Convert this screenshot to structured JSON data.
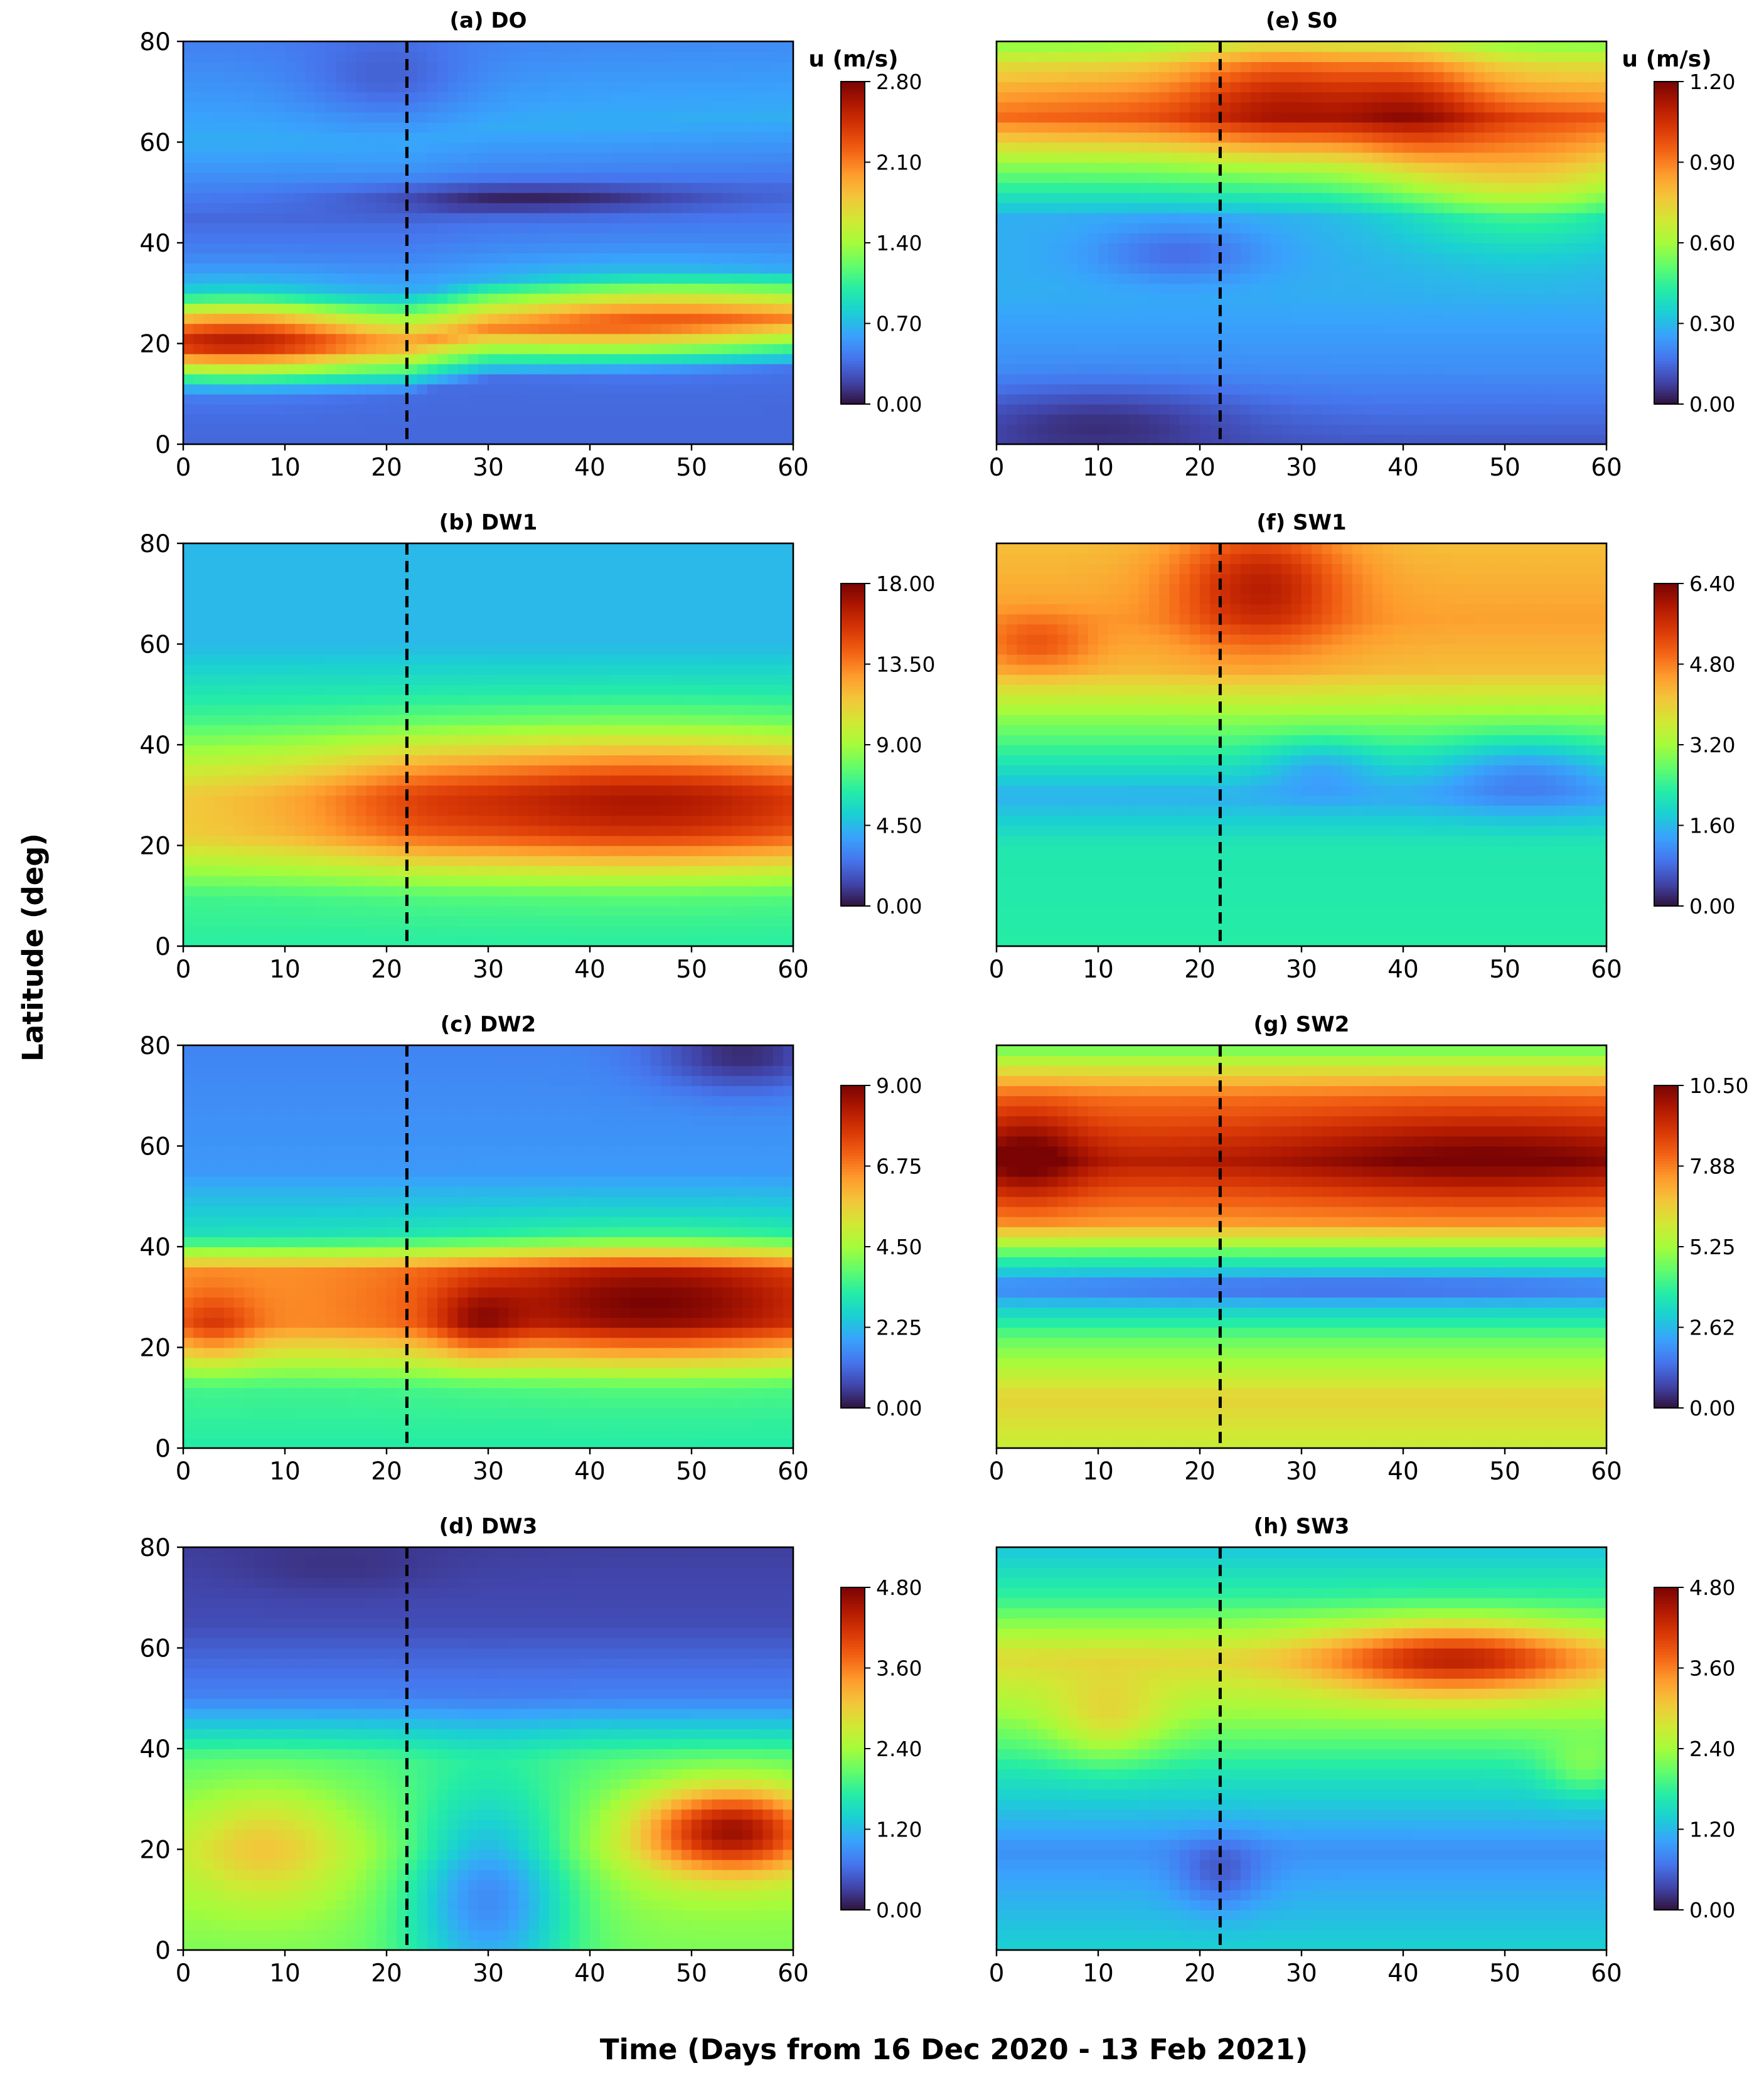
{
  "figure": {
    "xlabel": "Time (Days from 16 Dec 2020 - 13 Feb 2021)",
    "ylabel": "Latitude (deg)",
    "colorbar_unit": "u (m/s)",
    "colormap": [
      "#30123b",
      "#4145ab",
      "#4675ed",
      "#39a2fc",
      "#1bcfd4",
      "#24eca6",
      "#61fc6c",
      "#a4fc3b",
      "#d1e834",
      "#f3c63a",
      "#fe9b2d",
      "#f36315",
      "#d93806",
      "#b11901",
      "#7a0403"
    ]
  },
  "chart_data": [
    {
      "id": "a",
      "type": "heatmap",
      "title": "(a) DO",
      "xlim": [
        0,
        60
      ],
      "ylim": [
        0,
        80
      ],
      "xticks": [
        "0",
        "10",
        "20",
        "30",
        "40",
        "50",
        "60"
      ],
      "yticks": [
        "0",
        "20",
        "40",
        "60",
        "80"
      ],
      "event_day": 22,
      "cbar_ticks": [
        "0.00",
        "0.70",
        "1.40",
        "2.10",
        "2.80"
      ],
      "cbar_range": [
        0,
        2.8
      ],
      "base": [
        [
          0,
          0.35
        ],
        [
          10,
          0.35
        ],
        [
          20,
          1.85
        ],
        [
          30,
          0.55
        ],
        [
          45,
          0.35
        ],
        [
          60,
          0.65
        ],
        [
          80,
          0.45
        ]
      ],
      "blobs": [
        [
          5,
          22,
          9,
          6,
          0.85
        ],
        [
          45,
          26,
          12,
          6,
          0.5
        ],
        [
          33,
          49,
          12,
          2,
          -0.3
        ],
        [
          20,
          72,
          6,
          6,
          -0.2
        ]
      ],
      "shifts": [
        [
          0,
          0
        ],
        [
          22,
          0
        ],
        [
          30,
          3
        ],
        [
          60,
          5
        ]
      ]
    },
    {
      "id": "e",
      "type": "heatmap",
      "title": "(e) S0",
      "xlim": [
        0,
        60
      ],
      "ylim": [
        0,
        80
      ],
      "xticks": [
        "0",
        "10",
        "20",
        "30",
        "40",
        "50",
        "60"
      ],
      "yticks": [],
      "event_day": 22,
      "cbar_ticks": [
        "0.00",
        "0.30",
        "0.60",
        "0.90",
        "1.20"
      ],
      "cbar_range": [
        0,
        1.2
      ],
      "base": [
        [
          0,
          0.12
        ],
        [
          15,
          0.22
        ],
        [
          30,
          0.28
        ],
        [
          45,
          0.28
        ],
        [
          55,
          0.55
        ],
        [
          65,
          0.9
        ],
        [
          75,
          0.72
        ],
        [
          80,
          0.55
        ]
      ],
      "blobs": [
        [
          28,
          70,
          7,
          9,
          0.25
        ],
        [
          41,
          68,
          5,
          9,
          0.2
        ],
        [
          10,
          67,
          9,
          6,
          0.05
        ],
        [
          52,
          52,
          9,
          9,
          0.25
        ],
        [
          18,
          38,
          6,
          4,
          -0.12
        ],
        [
          10,
          5,
          10,
          5,
          -0.1
        ]
      ],
      "shifts": []
    },
    {
      "id": "b",
      "type": "heatmap",
      "title": "(b) DW1",
      "xlim": [
        0,
        60
      ],
      "ylim": [
        0,
        80
      ],
      "xticks": [
        "0",
        "10",
        "20",
        "30",
        "40",
        "50",
        "60"
      ],
      "yticks": [
        "0",
        "20",
        "40",
        "60",
        "80"
      ],
      "event_day": 22,
      "cbar_ticks": [
        "0.00",
        "4.50",
        "9.00",
        "13.50",
        "18.00"
      ],
      "cbar_range": [
        0,
        18
      ],
      "base": [
        [
          0,
          6.5
        ],
        [
          10,
          7
        ],
        [
          22,
          11
        ],
        [
          30,
          11
        ],
        [
          45,
          7
        ],
        [
          60,
          4.5
        ],
        [
          80,
          4.5
        ]
      ],
      "blobs": [
        [
          45,
          29,
          20,
          9,
          5.8
        ],
        [
          22,
          28,
          6,
          8,
          1
        ]
      ],
      "shifts": []
    },
    {
      "id": "f",
      "type": "heatmap",
      "title": "(f) SW1",
      "xlim": [
        0,
        60
      ],
      "ylim": [
        0,
        80
      ],
      "xticks": [
        "0",
        "10",
        "20",
        "30",
        "40",
        "50",
        "60"
      ],
      "yticks": [],
      "event_day": 22,
      "cbar_ticks": [
        "0.00",
        "1.60",
        "3.20",
        "4.80",
        "6.40"
      ],
      "cbar_range": [
        0,
        6.4
      ],
      "base": [
        [
          0,
          2.3
        ],
        [
          20,
          2.2
        ],
        [
          30,
          1.5
        ],
        [
          45,
          3
        ],
        [
          55,
          4.2
        ],
        [
          65,
          4.5
        ],
        [
          80,
          4.2
        ]
      ],
      "blobs": [
        [
          26,
          72,
          6,
          9,
          1.5
        ],
        [
          4,
          60,
          4,
          4,
          0.8
        ],
        [
          52,
          35,
          6,
          5,
          -0.8
        ],
        [
          32,
          36,
          4,
          4,
          -0.6
        ]
      ],
      "shifts": []
    },
    {
      "id": "c",
      "type": "heatmap",
      "title": "(c) DW2",
      "xlim": [
        0,
        60
      ],
      "ylim": [
        0,
        80
      ],
      "xticks": [
        "0",
        "10",
        "20",
        "30",
        "40",
        "50",
        "60"
      ],
      "yticks": [
        "0",
        "20",
        "40",
        "60",
        "80"
      ],
      "event_day": 22,
      "cbar_ticks": [
        "0.00",
        "2.25",
        "4.50",
        "6.75",
        "9.00"
      ],
      "cbar_range": [
        0,
        9
      ],
      "base": [
        [
          0,
          3.2
        ],
        [
          12,
          3.5
        ],
        [
          25,
          6.5
        ],
        [
          35,
          6.5
        ],
        [
          42,
          3
        ],
        [
          55,
          1.8
        ],
        [
          80,
          1.5
        ]
      ],
      "blobs": [
        [
          46,
          29,
          14,
          8,
          2.5
        ],
        [
          29,
          25,
          3,
          5,
          1.2
        ],
        [
          3,
          24,
          3,
          5,
          1.2
        ],
        [
          55,
          78,
          6,
          5,
          -1.2
        ]
      ],
      "shifts": []
    },
    {
      "id": "g",
      "type": "heatmap",
      "title": "(g) SW2",
      "xlim": [
        0,
        60
      ],
      "ylim": [
        0,
        80
      ],
      "xticks": [
        "0",
        "10",
        "20",
        "30",
        "40",
        "50",
        "60"
      ],
      "yticks": [],
      "event_day": 22,
      "cbar_ticks": [
        "0.00",
        "2.62",
        "5.25",
        "7.88",
        "10.50"
      ],
      "cbar_range": [
        0,
        10.5
      ],
      "base": [
        [
          0,
          5.8
        ],
        [
          10,
          6.5
        ],
        [
          22,
          4.5
        ],
        [
          32,
          2
        ],
        [
          38,
          4
        ],
        [
          45,
          7.5
        ],
        [
          57,
          9.5
        ],
        [
          70,
          8
        ],
        [
          80,
          4.5
        ]
      ],
      "blobs": [
        [
          48,
          58,
          14,
          7,
          1.2
        ],
        [
          3,
          58,
          4,
          7,
          1.5
        ],
        [
          35,
          32,
          25,
          2,
          -0.8
        ]
      ],
      "shifts": []
    },
    {
      "id": "d",
      "type": "heatmap",
      "title": "(d) DW3",
      "xlim": [
        0,
        60
      ],
      "ylim": [
        0,
        80
      ],
      "xticks": [
        "0",
        "10",
        "20",
        "30",
        "40",
        "50",
        "60"
      ],
      "yticks": [
        "0",
        "20",
        "40",
        "60",
        "80"
      ],
      "event_day": 22,
      "cbar_ticks": [
        "0.00",
        "1.20",
        "2.40",
        "3.60",
        "4.80"
      ],
      "cbar_range": [
        0,
        4.8
      ],
      "base": [
        [
          0,
          2.2
        ],
        [
          20,
          2.5
        ],
        [
          38,
          2
        ],
        [
          50,
          0.8
        ],
        [
          65,
          0.4
        ],
        [
          80,
          0.3
        ]
      ],
      "blobs": [
        [
          54,
          24,
          6,
          6,
          2.2
        ],
        [
          8,
          21,
          5,
          8,
          0.6
        ],
        [
          30,
          12,
          6,
          14,
          -1.5
        ],
        [
          15,
          76,
          7,
          4,
          -0.1
        ]
      ],
      "shifts": []
    },
    {
      "id": "h",
      "type": "heatmap",
      "title": "(h) SW3",
      "xlim": [
        0,
        60
      ],
      "ylim": [
        0,
        80
      ],
      "xticks": [
        "0",
        "10",
        "20",
        "30",
        "40",
        "50",
        "60"
      ],
      "yticks": [],
      "event_day": 22,
      "cbar_ticks": [
        "0.00",
        "1.20",
        "2.40",
        "3.60",
        "4.80"
      ],
      "cbar_range": [
        0,
        4.8
      ],
      "base": [
        [
          0,
          1.4
        ],
        [
          20,
          0.9
        ],
        [
          35,
          1.6
        ],
        [
          48,
          2.4
        ],
        [
          58,
          2.9
        ],
        [
          70,
          1.8
        ],
        [
          80,
          1.3
        ]
      ],
      "blobs": [
        [
          45,
          58,
          9,
          5,
          1.5
        ],
        [
          11,
          45,
          4,
          6,
          0.6
        ],
        [
          22,
          15,
          3,
          5,
          -0.5
        ],
        [
          58,
          36,
          3,
          4,
          0.5
        ]
      ],
      "shifts": []
    }
  ]
}
